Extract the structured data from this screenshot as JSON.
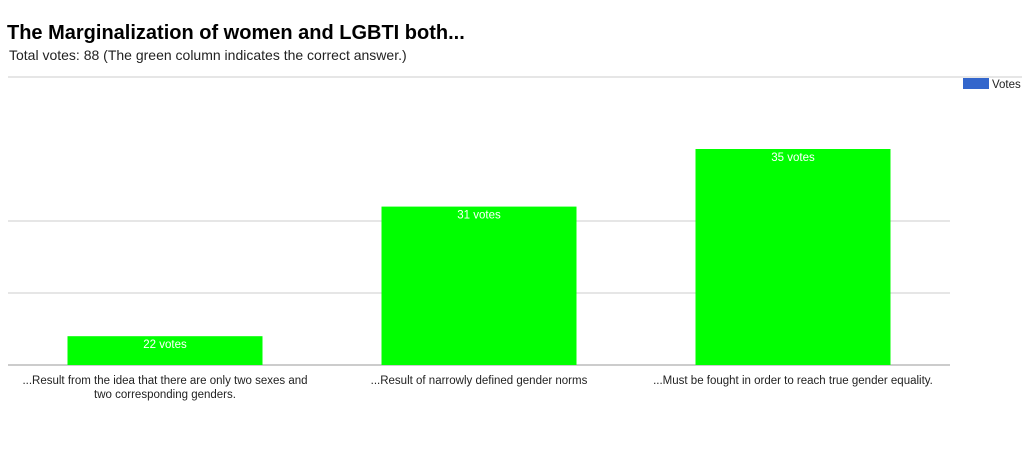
{
  "chart_data": {
    "type": "bar",
    "title": "The Marginalization of women and LGBTI both...",
    "subtitle": "Total votes: 88 (The green column indicates the correct answer.)",
    "categories": [
      [
        "...Result from the idea that there are only two sexes and",
        "two corresponding genders."
      ],
      [
        "...Result of narrowly defined gender norms"
      ],
      [
        "...Must be fought in order to reach true gender equality."
      ]
    ],
    "series": [
      {
        "name": "Votes",
        "values": [
          22,
          31,
          35
        ],
        "data_labels": [
          "22 votes",
          "31 votes",
          "35 votes"
        ],
        "bar_color": "#00ff00",
        "legend_color": "#3366cc"
      }
    ],
    "ylim": [
      20,
      40
    ],
    "gridlines": [
      20,
      25,
      30,
      40
    ],
    "grid": true,
    "legend_position": "top-right"
  }
}
